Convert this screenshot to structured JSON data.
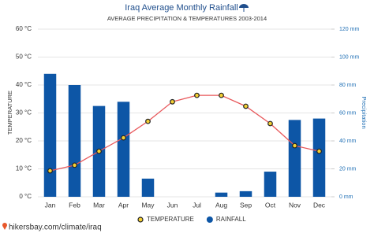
{
  "chart_data": {
    "type": "bar",
    "title": "Iraq Average Monthly Rainfall",
    "subtitle": "AVERAGE PRECIPITATION & TEMPERATURES 2003-2014",
    "y_label": "TEMPERATURE",
    "y2_label": "Precipitation",
    "source": "hikersbay.com/climate/iraq",
    "categories": [
      "Jan",
      "Feb",
      "Mar",
      "Apr",
      "May",
      "Jun",
      "Jul",
      "Aug",
      "Sep",
      "Oct",
      "Nov",
      "Dec"
    ],
    "series": [
      {
        "name": "TEMPERATURE",
        "type": "line",
        "axis": "y",
        "color": "#e8575a",
        "marker_color": "#f5d033",
        "values": [
          9.3,
          11.3,
          16.3,
          21.1,
          27,
          34,
          36.3,
          36.3,
          32.4,
          26.2,
          18.3,
          16.3
        ]
      },
      {
        "name": "RAINFALL",
        "type": "bar",
        "axis": "y2",
        "color": "#0d56a6",
        "values": [
          88,
          80,
          65,
          68,
          13,
          0,
          0,
          3,
          4,
          18,
          55,
          56
        ]
      }
    ],
    "ylim": [
      0,
      60
    ],
    "yticks": [
      {
        "value": 0,
        "label": "0 °C"
      },
      {
        "value": 10,
        "label": "10 °C"
      },
      {
        "value": 20,
        "label": "20 °C"
      },
      {
        "value": 30,
        "label": "30 °C"
      },
      {
        "value": 40,
        "label": "40 °C"
      },
      {
        "value": 50,
        "label": "50 °C"
      },
      {
        "value": 60,
        "label": "60 °C"
      }
    ],
    "y2lim": [
      0,
      120
    ],
    "y2ticks": [
      {
        "value": 0,
        "label": "0 mm"
      },
      {
        "value": 20,
        "label": "20 mm"
      },
      {
        "value": 40,
        "label": "40 mm"
      },
      {
        "value": 60,
        "label": "60 mm"
      },
      {
        "value": 80,
        "label": "80 mm"
      },
      {
        "value": 100,
        "label": "100 mm"
      },
      {
        "value": 120,
        "label": "120 mm"
      }
    ],
    "grid": true
  }
}
